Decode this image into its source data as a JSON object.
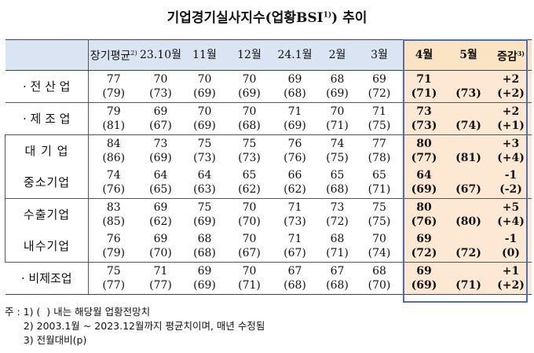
{
  "title": {
    "main": "기업경기실사지수(업황BSI",
    "sup": "1)",
    "end": ") 추이"
  },
  "header": {
    "cols": [
      "장기평균",
      "23.10월",
      "11월",
      "12월",
      "24.1월",
      "2월",
      "3월",
      "4월",
      "5월",
      "증감"
    ],
    "col0_sup": "2)",
    "col9_sup": "3)"
  },
  "rows": [
    {
      "label": "· 전 산 업",
      "vals": [
        "77",
        "70",
        "70",
        "70",
        "69",
        "68",
        "69",
        "71",
        "",
        "+2"
      ],
      "sub": [
        "(79)",
        "(73)",
        "(69)",
        "(69)",
        "(68)",
        "(69)",
        "(72)",
        "(71)",
        "(73)",
        "(+2)"
      ]
    },
    {
      "label": "· 제 조 업",
      "vals": [
        "79",
        "69",
        "70",
        "70",
        "71",
        "70",
        "71",
        "73",
        "",
        "+2"
      ],
      "sub": [
        "(81)",
        "(67)",
        "(69)",
        "(68)",
        "(69)",
        "(71)",
        "(75)",
        "(73)",
        "(74)",
        "(+1)"
      ]
    },
    {
      "label": "대 기 업",
      "vals": [
        "84",
        "73",
        "75",
        "75",
        "76",
        "74",
        "77",
        "80",
        "",
        "+3"
      ],
      "sub": [
        "(86)",
        "(69)",
        "(73)",
        "(73)",
        "(76)",
        "(75)",
        "(78)",
        "(77)",
        "(81)",
        "(+4)"
      ]
    },
    {
      "label": "중소기업",
      "vals": [
        "74",
        "64",
        "64",
        "65",
        "66",
        "65",
        "65",
        "64",
        "",
        "-1"
      ],
      "sub": [
        "(76)",
        "(65)",
        "(63)",
        "(62)",
        "(62)",
        "(68)",
        "(71)",
        "(69)",
        "(67)",
        "(-2)"
      ]
    },
    {
      "label": "수출기업",
      "vals": [
        "83",
        "69",
        "75",
        "70",
        "71",
        "73",
        "75",
        "80",
        "",
        "+5"
      ],
      "sub": [
        "(85)",
        "(62)",
        "(69)",
        "(70)",
        "(73)",
        "(72)",
        "(75)",
        "(76)",
        "(80)",
        "(+4)"
      ]
    },
    {
      "label": "내수기업",
      "vals": [
        "76",
        "69",
        "68",
        "70",
        "71",
        "68",
        "70",
        "69",
        "",
        "-1"
      ],
      "sub": [
        "(79)",
        "(70)",
        "(68)",
        "(67)",
        "(67)",
        "(71)",
        "(74)",
        "(72)",
        "(72)",
        "(0)"
      ]
    },
    {
      "label": "· 비제조업",
      "vals": [
        "75",
        "71",
        "69",
        "70",
        "67",
        "67",
        "68",
        "69",
        "",
        "+1"
      ],
      "sub": [
        "(77)",
        "(77)",
        "(69)",
        "(71)",
        "(68)",
        "(68)",
        "(70)",
        "(69)",
        "(71)",
        "(+2)"
      ]
    }
  ],
  "notes": [
    "주 : 1) (  ) 내는 해당월 업황전망치",
    "      2) 2003.1월 ~ 2023.12월까지 평균치이며, 매년 수정됨",
    "      3) 전월대비(p)"
  ]
}
